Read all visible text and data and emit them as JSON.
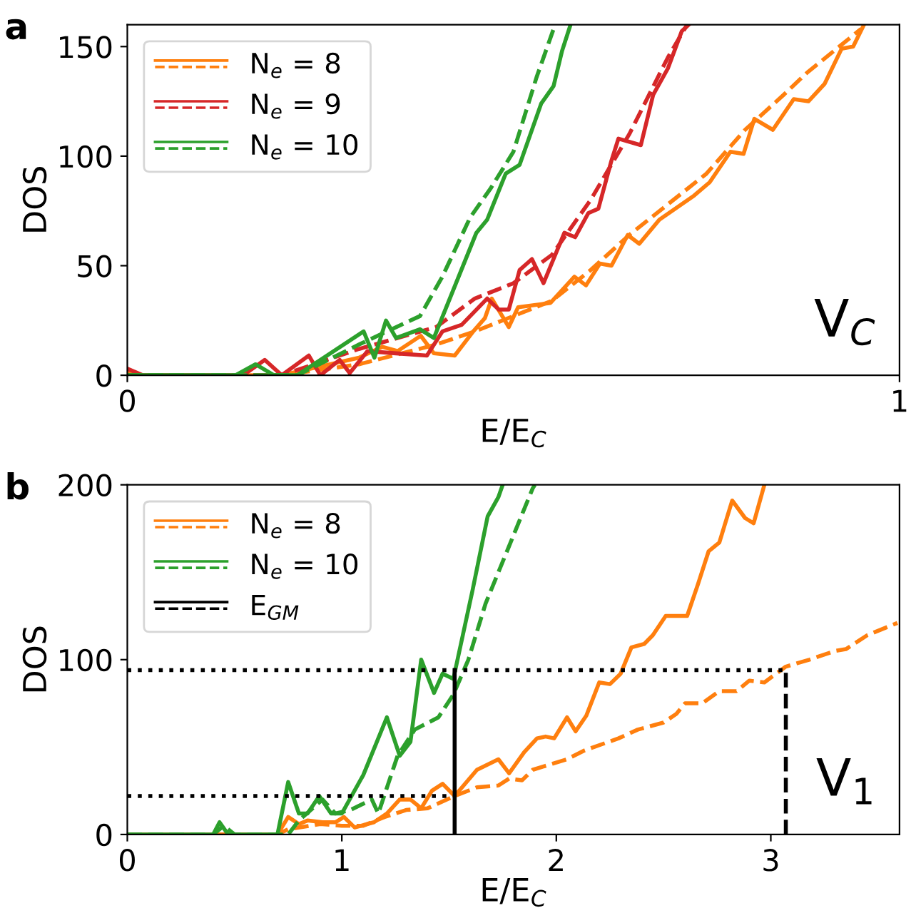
{
  "chart_data": [
    {
      "type": "line",
      "title": "a",
      "xlabel": "E/E$_{C}$",
      "ylabel": "DOS",
      "annotations": [
        "V$_{C}$"
      ],
      "xlim": [
        0,
        1
      ],
      "ylim": [
        0,
        160
      ],
      "xticks": [
        0,
        1
      ],
      "yticks": [
        0,
        50,
        100,
        150
      ],
      "grid": false,
      "legend": "top left",
      "marker": "none",
      "series": [
        {
          "name": "N$_{e}$ = 8",
          "color": "#ff7f0e",
          "line_style": "solid",
          "x": [
            0,
            0.02,
            0.2,
            0.25,
            0.3,
            0.33,
            0.35,
            0.38,
            0.397,
            0.424,
            0.448,
            0.463,
            0.472,
            0.494,
            0.506,
            0.548,
            0.579,
            0.594,
            0.612,
            0.627,
            0.648,
            0.663,
            0.689,
            0.734,
            0.754,
            0.781,
            0.798,
            0.812,
            0.836,
            0.863,
            0.882,
            0.903,
            0.925,
            0.94,
            0.954
          ],
          "values": [
            2,
            0,
            0,
            4,
            8,
            13,
            11,
            18,
            10,
            9,
            20,
            26,
            35,
            22,
            31,
            33,
            45,
            41,
            51,
            50,
            64,
            60,
            71,
            82,
            88,
            102,
            101,
            117,
            112,
            126,
            125,
            133,
            149,
            150,
            160
          ]
        },
        {
          "color": "#ff7f0e",
          "line_style": "dashed",
          "x": [
            0,
            0.2,
            0.3,
            0.4,
            0.45,
            0.5,
            0.55,
            0.6,
            0.65,
            0.7,
            0.75,
            0.8,
            0.85,
            0.88,
            0.95
          ],
          "values": [
            0,
            0,
            5,
            14,
            20,
            27,
            34,
            48,
            64,
            78,
            92,
            112,
            128,
            138,
            158
          ]
        },
        {
          "name": "N$_{e}$ = 9",
          "color": "#d62728",
          "line_style": "solid",
          "x": [
            0,
            0.02,
            0.15,
            0.178,
            0.2,
            0.235,
            0.25,
            0.275,
            0.288,
            0.311,
            0.348,
            0.388,
            0.408,
            0.433,
            0.466,
            0.481,
            0.494,
            0.508,
            0.524,
            0.539,
            0.566,
            0.58,
            0.597,
            0.61,
            0.627,
            0.636,
            0.665,
            0.681,
            0.7,
            0.718,
            0.727
          ],
          "values": [
            3,
            0,
            0,
            7,
            0,
            9,
            0,
            7,
            1,
            11,
            10,
            9,
            20,
            23,
            35,
            30,
            30,
            48,
            53,
            42,
            65,
            63,
            74,
            76,
            98,
            108,
            105,
            128,
            140,
            157,
            160
          ]
        },
        {
          "color": "#d62728",
          "line_style": "dashed",
          "x": [
            0,
            0.2,
            0.3,
            0.4,
            0.45,
            0.5,
            0.55,
            0.6,
            0.65,
            0.7,
            0.725
          ],
          "values": [
            0,
            0,
            12,
            22,
            35,
            42,
            55,
            80,
            110,
            145,
            160
          ]
        },
        {
          "name": "N$_{e}$ = 10",
          "color": "#2ca02c",
          "line_style": "solid",
          "x": [
            0,
            0.14,
            0.166,
            0.19,
            0.22,
            0.306,
            0.32,
            0.335,
            0.348,
            0.379,
            0.397,
            0.452,
            0.466,
            0.49,
            0.508,
            0.536,
            0.552,
            0.563,
            0.574
          ],
          "values": [
            0,
            0,
            5,
            0,
            0,
            20,
            8,
            25,
            17,
            21,
            17,
            65,
            71,
            92,
            96,
            124,
            132,
            148,
            160
          ]
        },
        {
          "color": "#2ca02c",
          "line_style": "dashed",
          "x": [
            0,
            0.22,
            0.26,
            0.3,
            0.33,
            0.379,
            0.408,
            0.444,
            0.47,
            0.5,
            0.53,
            0.554
          ],
          "values": [
            0,
            0,
            7,
            14,
            19,
            27,
            45,
            72,
            85,
            102,
            136,
            160
          ]
        }
      ]
    },
    {
      "type": "line",
      "title": "b",
      "xlabel": "E/E$_{C}$",
      "ylabel": "DOS",
      "annotations": [
        "V$_{1}$"
      ],
      "xlim": [
        0,
        3.6
      ],
      "ylim": [
        0,
        200
      ],
      "xticks": [
        0,
        1,
        2,
        3
      ],
      "yticks": [
        0,
        100,
        200
      ],
      "grid": false,
      "legend": "top left",
      "marker": "none",
      "series": [
        {
          "name": "N$_{e}$ = 8",
          "color": "#ff7f0e",
          "line_style": "solid",
          "x": [
            0,
            0.7,
            0.75,
            0.8,
            0.84,
            0.91,
            0.97,
            1.01,
            1.06,
            1.15,
            1.21,
            1.27,
            1.32,
            1.37,
            1.42,
            1.47,
            1.526,
            1.63,
            1.73,
            1.78,
            1.85,
            1.91,
            1.95,
            1.99,
            2.05,
            2.09,
            2.14,
            2.2,
            2.25,
            2.3,
            2.35,
            2.41,
            2.45,
            2.51,
            2.61,
            2.66,
            2.71,
            2.76,
            2.82,
            2.88,
            2.92,
            2.97
          ],
          "values": [
            0,
            0,
            10,
            6,
            8,
            7,
            7,
            10,
            4,
            7,
            12,
            20,
            20,
            15,
            25,
            29,
            22,
            37,
            43,
            35,
            47,
            55,
            56,
            55,
            67,
            59,
            68,
            87,
            86,
            92,
            107,
            109,
            114,
            125,
            125,
            143,
            162,
            167,
            191,
            181,
            178,
            200
          ]
        },
        {
          "color": "#ff7f0e",
          "line_style": "dashed",
          "x": [
            0,
            0.7,
            0.75,
            0.9,
            1.0,
            1.1,
            1.2,
            1.3,
            1.4,
            1.526,
            1.63,
            1.73,
            1.78,
            1.84,
            1.89,
            2.05,
            2.13,
            2.29,
            2.38,
            2.5,
            2.56,
            2.6,
            2.68,
            2.76,
            2.84,
            2.9,
            2.97,
            3.07,
            3.18,
            3.3,
            3.35,
            3.45,
            3.59
          ],
          "values": [
            0,
            0,
            3,
            6,
            5,
            5,
            10,
            14,
            15,
            22,
            27,
            28,
            32,
            31,
            37,
            43,
            48,
            55,
            60,
            64,
            69,
            75,
            75,
            82,
            82,
            88,
            87,
            96,
            100,
            105,
            106,
            114,
            121
          ]
        },
        {
          "name": "N$_{e}$ = 10",
          "color": "#2ca02c",
          "line_style": "solid",
          "x": [
            0,
            0.4,
            0.43,
            0.47,
            0.7,
            0.75,
            0.8,
            0.84,
            0.895,
            0.95,
            1.0,
            1.1,
            1.21,
            1.27,
            1.32,
            1.37,
            1.43,
            1.47,
            1.52,
            1.61,
            1.68,
            1.73,
            1.75
          ],
          "values": [
            0,
            0,
            7,
            0,
            0,
            30,
            12,
            12,
            22,
            12,
            12,
            34,
            67,
            45,
            53,
            100,
            81,
            92,
            89,
            140,
            182,
            193,
            200
          ]
        },
        {
          "color": "#2ca02c",
          "line_style": "dashed",
          "x": [
            0,
            0.4,
            0.45,
            0.5,
            0.75,
            0.8,
            0.91,
            0.97,
            1.04,
            1.14,
            1.17,
            1.26,
            1.34,
            1.45,
            1.52,
            1.59,
            1.67,
            1.77,
            1.89,
            1.9
          ],
          "values": [
            0,
            0,
            5,
            0,
            0,
            8,
            20,
            12,
            14,
            20,
            12,
            45,
            60,
            67,
            80,
            100,
            132,
            162,
            198,
            200
          ]
        },
        {
          "name": "E$_{GM}$",
          "color": "#000000",
          "line_style": "solid",
          "x": [
            1.526,
            1.526
          ],
          "values": [
            0,
            94
          ]
        },
        {
          "color": "#000000",
          "line_style": "dashed",
          "x": [
            3.07,
            3.07
          ],
          "values": [
            0,
            94
          ]
        },
        {
          "color": "#000000",
          "line_style": "dotted",
          "x": [
            0,
            3.07
          ],
          "values": [
            94,
            94
          ]
        },
        {
          "color": "#000000",
          "line_style": "dotted",
          "x": [
            0,
            1.526
          ],
          "values": [
            22,
            22
          ]
        }
      ]
    }
  ]
}
